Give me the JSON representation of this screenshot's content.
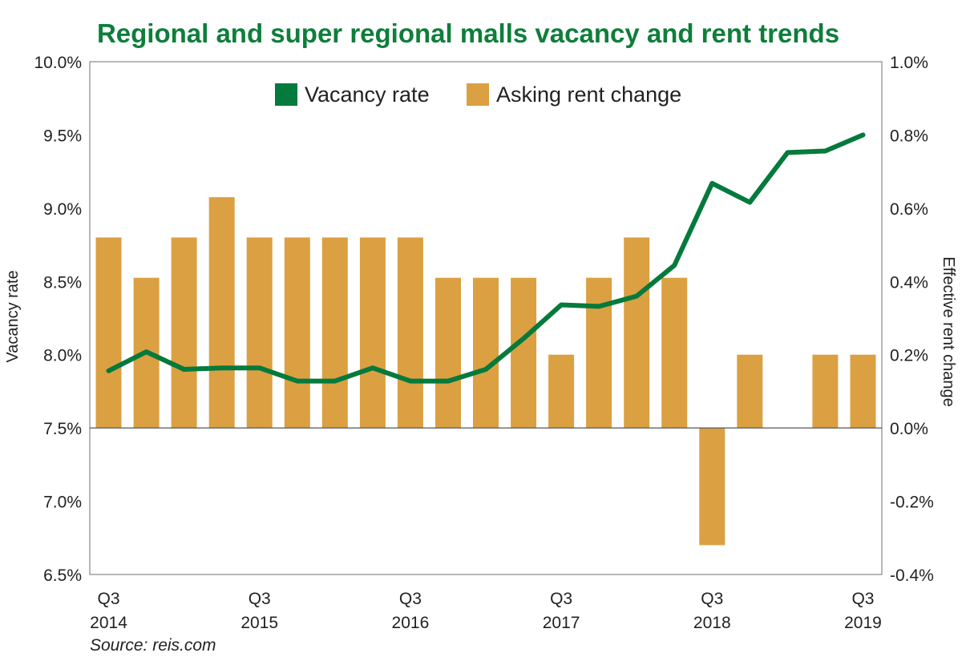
{
  "chart_data": {
    "type": "bar",
    "title": "Regional and super regional malls vacancy and rent trends",
    "source": "Source: reis.com",
    "ylabel_left": "Vacancy rate",
    "ylabel_right": "Effective rent change",
    "left_axis": {
      "min": 6.5,
      "max": 10.0,
      "ticks": [
        "6.5%",
        "7.0%",
        "7.5%",
        "8.0%",
        "8.5%",
        "9.0%",
        "9.5%",
        "10.0%"
      ]
    },
    "right_axis": {
      "min": -0.4,
      "max": 1.0,
      "ticks": [
        "-0.4%",
        "-0.2%",
        "0.0%",
        "0.2%",
        "0.4%",
        "0.6%",
        "0.8%",
        "1.0%"
      ]
    },
    "x_labels": [
      {
        "index": 0,
        "quarter": "Q3",
        "year": "2014"
      },
      {
        "index": 4,
        "quarter": "Q3",
        "year": "2015"
      },
      {
        "index": 8,
        "quarter": "Q3",
        "year": "2016"
      },
      {
        "index": 12,
        "quarter": "Q3",
        "year": "2017"
      },
      {
        "index": 16,
        "quarter": "Q3",
        "year": "2018"
      },
      {
        "index": 20,
        "quarter": "Q3",
        "year": "2019"
      }
    ],
    "num_periods": 21,
    "series": [
      {
        "name": "Asking rent change",
        "type": "bar",
        "axis": "right",
        "color": "#DBA042",
        "values": [
          0.52,
          0.41,
          0.52,
          0.63,
          0.52,
          0.52,
          0.52,
          0.52,
          0.52,
          0.41,
          0.41,
          0.41,
          0.2,
          0.41,
          0.52,
          0.41,
          -0.32,
          0.2,
          0.0,
          0.2,
          0.2
        ]
      },
      {
        "name": "Vacancy rate",
        "type": "line",
        "axis": "left",
        "color": "#047A3C",
        "values": [
          7.89,
          8.02,
          7.9,
          7.91,
          7.91,
          7.82,
          7.82,
          7.91,
          7.82,
          7.82,
          7.9,
          8.11,
          8.34,
          8.33,
          8.4,
          8.61,
          9.17,
          9.04,
          9.38,
          9.39,
          9.5
        ]
      }
    ],
    "legend": [
      {
        "label": "Vacancy rate",
        "color": "#047A3C"
      },
      {
        "label": "Asking rent change",
        "color": "#DBA042"
      }
    ],
    "legend_position": "top-center",
    "title_color": "#0E7E3A",
    "axis_color": "#888888"
  }
}
